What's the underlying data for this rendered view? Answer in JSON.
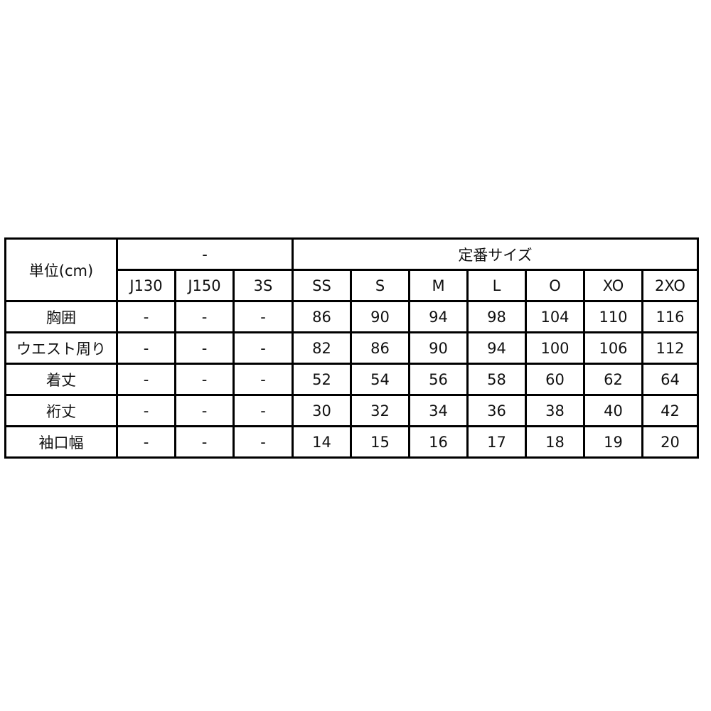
{
  "table": {
    "unit_header": "単位(cm)",
    "group_headers": [
      "-",
      "定番サイズ"
    ],
    "sizes": [
      "J130",
      "J150",
      "3S",
      "SS",
      "S",
      "M",
      "L",
      "O",
      "XO",
      "2XO"
    ],
    "rows": [
      {
        "label": "胸囲",
        "values": [
          "-",
          "-",
          "-",
          "86",
          "90",
          "94",
          "98",
          "104",
          "110",
          "116"
        ]
      },
      {
        "label": "ウエスト周り",
        "values": [
          "-",
          "-",
          "-",
          "82",
          "86",
          "90",
          "94",
          "100",
          "106",
          "112"
        ]
      },
      {
        "label": "着丈",
        "values": [
          "-",
          "-",
          "-",
          "52",
          "54",
          "56",
          "58",
          "60",
          "62",
          "64"
        ]
      },
      {
        "label": "裄丈",
        "values": [
          "-",
          "-",
          "-",
          "30",
          "32",
          "34",
          "36",
          "38",
          "40",
          "42"
        ]
      },
      {
        "label": "袖口幅",
        "values": [
          "-",
          "-",
          "-",
          "14",
          "15",
          "16",
          "17",
          "18",
          "19",
          "20"
        ]
      }
    ]
  }
}
